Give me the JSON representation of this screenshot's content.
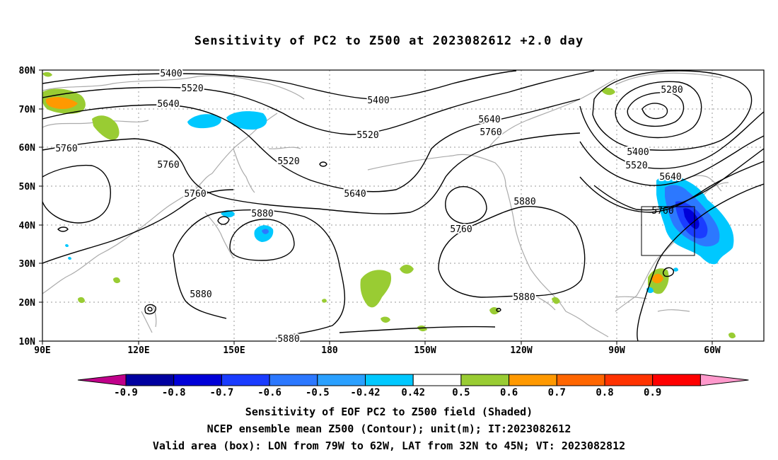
{
  "title": "Sensitivity of PC2 to Z500 at 2023082612 +2.0 day",
  "axes": {
    "lat_labels": [
      "80N",
      "70N",
      "60N",
      "50N",
      "40N",
      "30N",
      "20N",
      "10N"
    ],
    "lon_labels": [
      "90E",
      "120E",
      "150E",
      "180",
      "150W",
      "120W",
      "90W",
      "60W"
    ]
  },
  "contour_labels": {
    "z5400_a": "5400",
    "z5520_a": "5520",
    "z5640_a": "5640",
    "z5760_a": "5760",
    "z5400_b": "5400",
    "z5520_b": "5520",
    "z5640_b": "5640",
    "z5760_b": "5760",
    "z5520_c": "5520",
    "z5760_c": "5760",
    "z5760_d": "5760",
    "z5880_a": "5880",
    "z5880_b": "5880",
    "z5880_c": "5880",
    "z5880_d": "5880",
    "z5880_e": "5880",
    "z5640_c": "5640",
    "z5280": "5280",
    "z5400_c": "5400",
    "z5520_d": "5520",
    "z5640_d": "5640",
    "z5760_e": "5760"
  },
  "colorbar": {
    "labels": [
      "-0.9",
      "-0.8",
      "-0.7",
      "-0.6",
      "-0.5",
      "-0.42",
      "0.42",
      "0.5",
      "0.6",
      "0.7",
      "0.8",
      "0.9"
    ],
    "colors": [
      "#c0008a",
      "#0000a0",
      "#0000d8",
      "#1a3cff",
      "#2c78ff",
      "#2aa0ff",
      "#00c8ff",
      "#ffffff",
      "#99cc33",
      "#ff9900",
      "#ff6600",
      "#ff3300",
      "#ff0000",
      "#ff99cc"
    ]
  },
  "colors": {
    "contour": "#000000",
    "coast": "#aaaaaa",
    "grid": "#999999",
    "neg_light": "#00c8ff",
    "neg_mid": "#2c78ff",
    "neg_dark": "#1a3cff",
    "neg_darker": "#0000d8",
    "pos_green": "#99cc33",
    "pos_orange": "#ff9900"
  },
  "captions": {
    "line1": "Sensitivity of EOF PC2 to Z500 field (Shaded)",
    "line2": "NCEP ensemble mean Z500 (Contour); unit(m); IT:2023082612",
    "line3": "Valid area (box): LON from 79W to 62W, LAT from 32N to 45N; VT: 2023082812"
  }
}
